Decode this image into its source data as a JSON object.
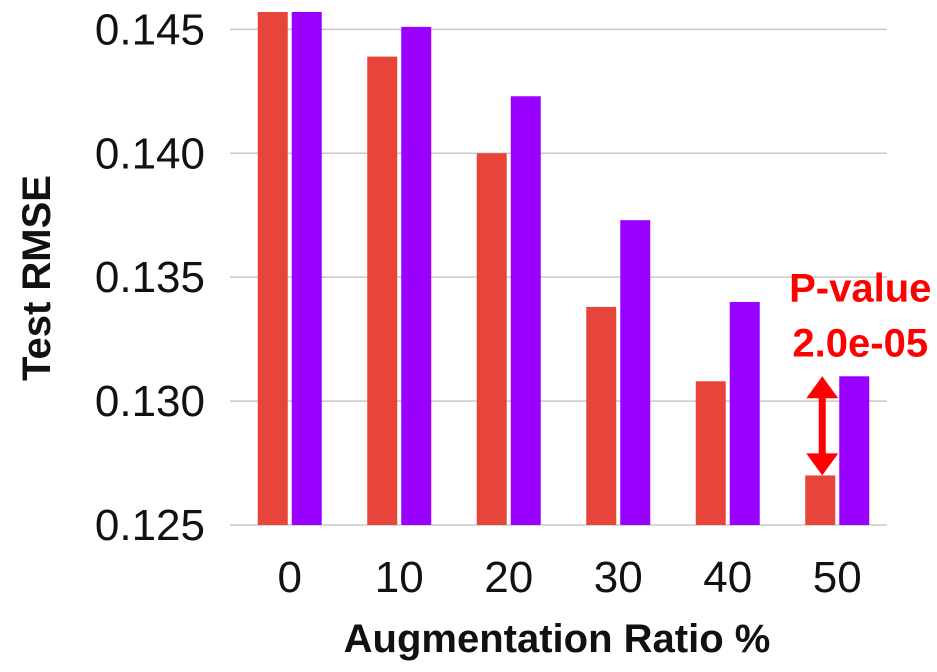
{
  "chart_data": {
    "type": "bar",
    "categories": [
      "0",
      "10",
      "20",
      "30",
      "40",
      "50"
    ],
    "series": [
      {
        "color": "#e8453a",
        "values": [
          0.1457,
          0.1439,
          0.14,
          0.1338,
          0.1308,
          0.127
        ]
      },
      {
        "color": "#9900ff",
        "values": [
          0.1457,
          0.1451,
          0.1423,
          0.1373,
          0.134,
          0.131
        ]
      }
    ],
    "xlabel": "Augmentation Ratio %",
    "ylabel": "Test RMSE",
    "ylim": [
      0.125,
      0.1457
    ],
    "yticks": [
      0.125,
      0.13,
      0.135,
      0.14,
      0.145
    ],
    "ytick_labels": [
      "0.125",
      "0.130",
      "0.135",
      "0.140",
      "0.145"
    ],
    "grid": true,
    "annotation": {
      "category": "50",
      "line1": "P-value",
      "line2": "2.0e-05",
      "color": "#ff0000"
    }
  }
}
